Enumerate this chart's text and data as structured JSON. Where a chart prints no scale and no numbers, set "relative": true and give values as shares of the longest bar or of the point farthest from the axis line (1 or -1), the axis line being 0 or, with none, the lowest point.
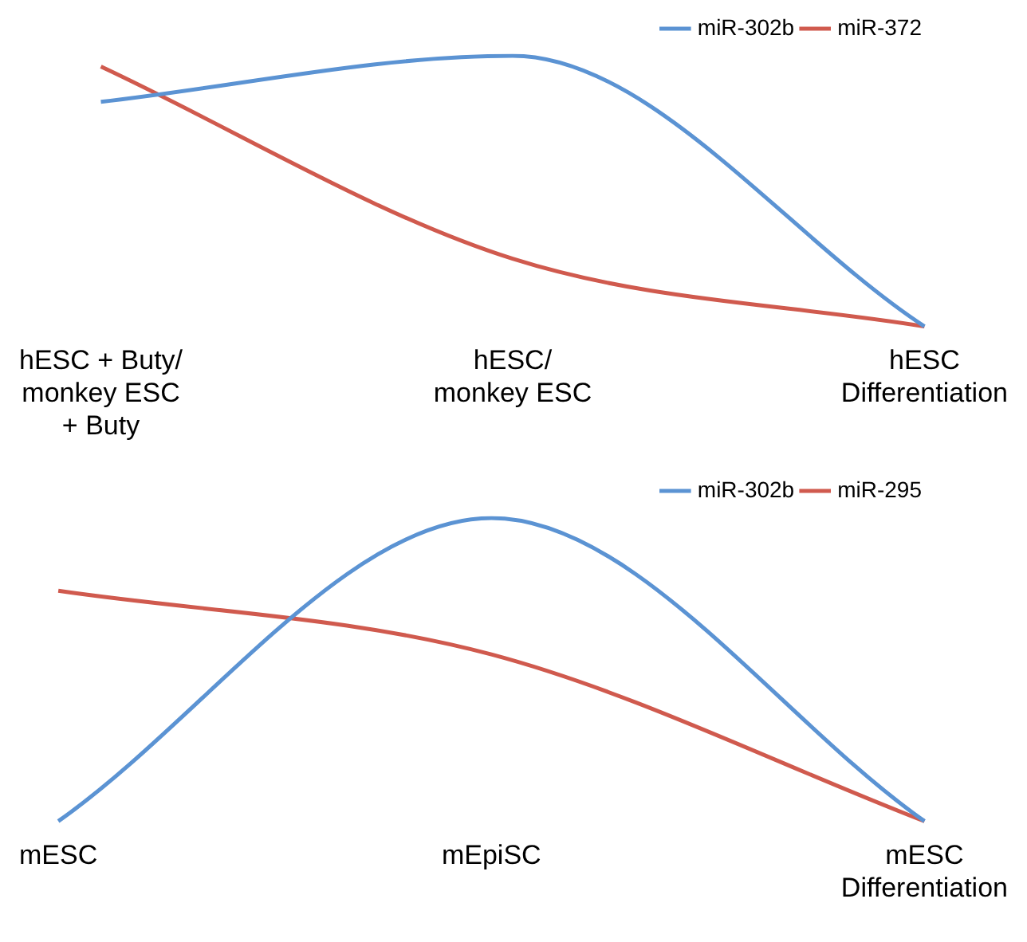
{
  "chart_data": [
    {
      "type": "line",
      "relative": true,
      "categories": [
        "hESC + Buty/\nmonkey ESC\n+ Buty",
        "hESC/\nmonkey ESC",
        "hESC\nDifferentiation"
      ],
      "legend": "top right",
      "grid": false,
      "marker": "none",
      "line_style": "solid",
      "series": [
        {
          "name": "miR-302b",
          "color": "#5b93d3",
          "values": [
            0.83,
            1,
            0
          ]
        },
        {
          "name": "miR-372",
          "color": "#d05a4e",
          "values": [
            0.96,
            0.25,
            0
          ]
        }
      ]
    },
    {
      "type": "line",
      "relative": true,
      "categories": [
        "mESC",
        "mEpiSC",
        "mESC\nDifferentiation"
      ],
      "legend": "top right",
      "grid": false,
      "marker": "none",
      "line_style": "solid",
      "series": [
        {
          "name": "miR-302b",
          "color": "#5b93d3",
          "values": [
            0,
            1,
            0
          ]
        },
        {
          "name": "miR-295",
          "color": "#d05a4e",
          "values": [
            0.76,
            0.55,
            0
          ]
        }
      ]
    }
  ]
}
